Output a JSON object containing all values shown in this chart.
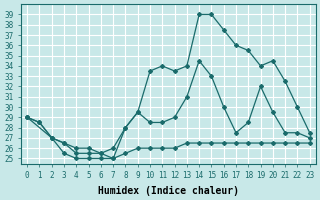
{
  "title": "",
  "xlabel": "Humidex (Indice chaleur)",
  "ylabel": "",
  "bg_color": "#c8e8e8",
  "grid_color": "#ffffff",
  "line_color": "#1a6b6b",
  "xlim": [
    -0.5,
    23.5
  ],
  "ylim": [
    24.5,
    40
  ],
  "xticks": [
    0,
    1,
    2,
    3,
    4,
    5,
    6,
    7,
    8,
    9,
    10,
    11,
    12,
    13,
    14,
    15,
    16,
    17,
    18,
    19,
    20,
    21,
    22,
    23
  ],
  "yticks": [
    25,
    26,
    27,
    28,
    29,
    30,
    31,
    32,
    33,
    34,
    35,
    36,
    37,
    38,
    39
  ],
  "line1_x": [
    0,
    1,
    2,
    3,
    4,
    5,
    6,
    7,
    8,
    9,
    10,
    11,
    12,
    13,
    14,
    15,
    16,
    17,
    18,
    19,
    20,
    21,
    22,
    23
  ],
  "line1_y": [
    29,
    28.5,
    27,
    25.5,
    25,
    25,
    25,
    25,
    25.5,
    26,
    26,
    26,
    26,
    26.5,
    26.5,
    26.5,
    26.5,
    26.5,
    26.5,
    26.5,
    26.5,
    26.5,
    26.5,
    26.5
  ],
  "line2_x": [
    0,
    1,
    2,
    3,
    4,
    5,
    6,
    7,
    8,
    9,
    10,
    11,
    12,
    13,
    14,
    15,
    16,
    17,
    18,
    19,
    20,
    21,
    22,
    23
  ],
  "line2_y": [
    29,
    28.5,
    27,
    26.5,
    26,
    26,
    25.5,
    25,
    28,
    29.5,
    28.5,
    28.5,
    29,
    31,
    34.5,
    33,
    30,
    27.5,
    28.5,
    32,
    29.5,
    27.5,
    27.5,
    27
  ],
  "line3_x": [
    0,
    2,
    3,
    4,
    5,
    6,
    7,
    8,
    9,
    10,
    11,
    12,
    13,
    14,
    15,
    16,
    17,
    18,
    19,
    20,
    21,
    22,
    23
  ],
  "line3_y": [
    29,
    27,
    26.5,
    25.5,
    25.5,
    25.5,
    26,
    28,
    29.5,
    33.5,
    34,
    33.5,
    34,
    39,
    39,
    37.5,
    36,
    35.5,
    34,
    34.5,
    32.5,
    30,
    27.5
  ]
}
